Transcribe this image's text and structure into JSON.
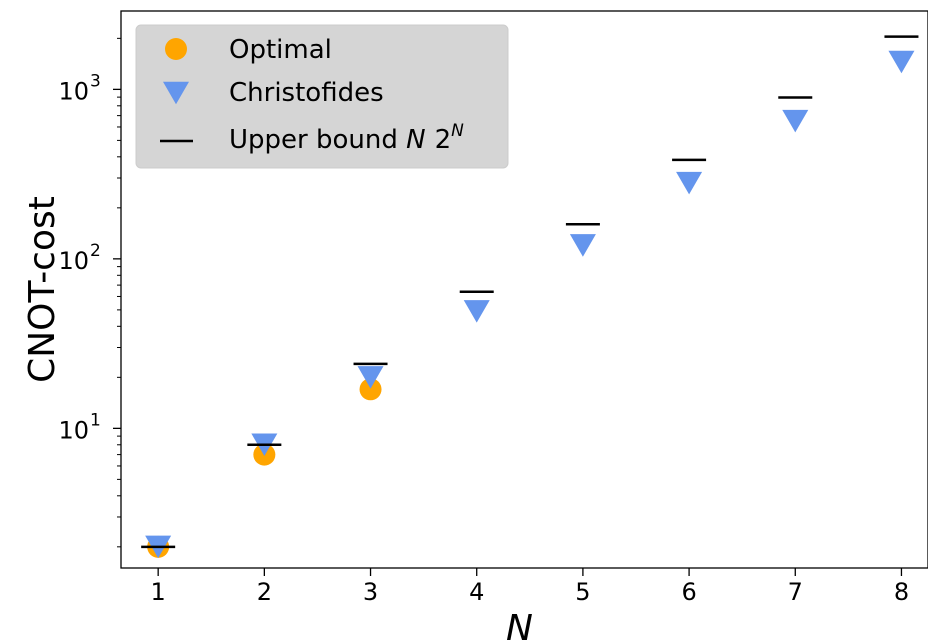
{
  "chart_data": {
    "type": "scatter",
    "xlabel": "N",
    "ylabel": "CNOT-cost",
    "yscale": "log",
    "xlim": [
      0.65,
      8.25
    ],
    "ylim": [
      1.5,
      2900
    ],
    "xticks": [
      1,
      2,
      3,
      4,
      5,
      6,
      7,
      8
    ],
    "xtick_labels": [
      "1",
      "2",
      "3",
      "4",
      "5",
      "6",
      "7",
      "8"
    ],
    "yticks": [
      10,
      100,
      1000
    ],
    "ytick_labels": [
      {
        "base": "10",
        "exp": "1"
      },
      {
        "base": "10",
        "exp": "2"
      },
      {
        "base": "10",
        "exp": "3"
      }
    ],
    "grid": false,
    "legend_position": "top-left",
    "series": [
      {
        "name": "Optimal",
        "marker": "circle",
        "color": "#FFA500",
        "x": [
          1,
          2,
          3
        ],
        "y": [
          2,
          7,
          17
        ]
      },
      {
        "name": "Christofides",
        "marker": "triangle-down",
        "color": "#6495ED",
        "x": [
          1,
          2,
          3,
          4,
          5,
          6,
          7,
          8
        ],
        "y": [
          2,
          8,
          20,
          49,
          120,
          280,
          650,
          1450
        ]
      },
      {
        "name": "Upper bound ",
        "name_math": {
          "var": "N",
          "base": "2",
          "exp": "N"
        },
        "marker": "hline",
        "color": "#000000",
        "x": [
          1,
          2,
          3,
          4,
          5,
          6,
          7,
          8
        ],
        "y": [
          2,
          8,
          24,
          64,
          160,
          384,
          896,
          2048
        ]
      }
    ]
  }
}
